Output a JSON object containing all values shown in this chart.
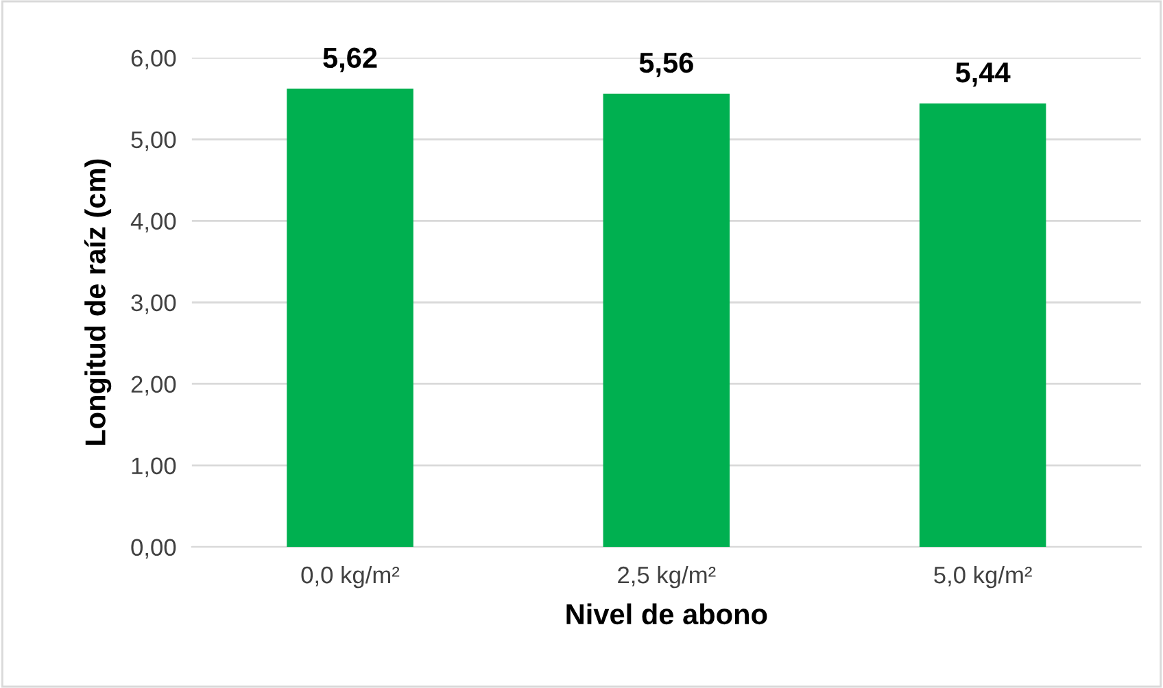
{
  "chart_data": {
    "type": "bar",
    "xlabel": "Nivel de abono",
    "ylabel": "Longitud de raíz (cm)",
    "categories": [
      "0,0 kg/m²",
      "2,5 kg/m²",
      "5,0 kg/m²"
    ],
    "values": [
      5.62,
      5.56,
      5.44
    ],
    "value_labels": [
      "5,62",
      "5,56",
      "5,44"
    ],
    "color": "#00b050",
    "ylim": [
      0,
      6
    ],
    "yticks": [
      {
        "value": 0,
        "label": "0,00"
      },
      {
        "value": 1,
        "label": "1,00"
      },
      {
        "value": 2,
        "label": "2,00"
      },
      {
        "value": 3,
        "label": "3,00"
      },
      {
        "value": 4,
        "label": "4,00"
      },
      {
        "value": 5,
        "label": "5,00"
      },
      {
        "value": 6,
        "label": "6,00"
      }
    ],
    "grid": "y"
  }
}
